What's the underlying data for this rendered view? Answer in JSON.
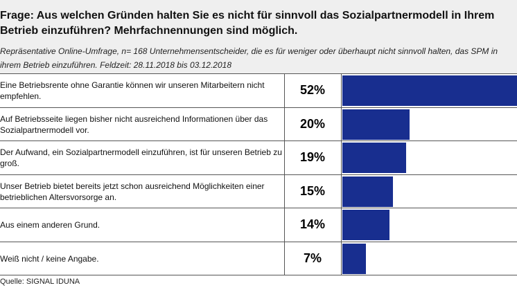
{
  "header": {
    "title": "Frage: Aus welchen Gründen halten Sie es nicht für sinnvoll das Sozialpartnermodell in Ihrem Betrieb einzuführen? Mehrfachnennungen sind möglich.",
    "subtitle": "Repräsentative Online-Umfrage, n= 168 Unternehmensentscheider, die es für weniger oder überhaupt nicht sinnvoll halten, das SPM in ihrem Betrieb einzuführen. Feldzeit: 28.11.2018 bis 03.12.2018"
  },
  "source": "Quelle: SIGNAL IDUNA",
  "colors": {
    "bar": "#182e8f",
    "header_bg": "#efefef"
  },
  "chart_data": {
    "type": "bar",
    "orientation": "horizontal",
    "title": "Frage: Aus welchen Gründen halten Sie es nicht für sinnvoll das Sozialpartnermodell in Ihrem Betrieb einzuführen? Mehrfachnennungen sind möglich.",
    "categories": [
      "Eine Betriebsrente ohne Garantie können wir unseren Mitarbeitern nicht empfehlen.",
      "Auf Betriebsseite liegen bisher nicht ausreichend Informationen über das Sozialpartnermodell vor.",
      "Der Aufwand, ein Sozialpartnermodell einzuführen, ist für unseren Betrieb zu groß.",
      "Unser Betrieb bietet bereits jetzt schon ausreichend Möglichkeiten einer betrieblichen Altersvorsorge an.",
      "Aus einem anderen Grund.",
      "Weiß nicht / keine Angabe."
    ],
    "values": [
      52,
      20,
      19,
      15,
      14,
      7
    ],
    "value_labels": [
      "52%",
      "20%",
      "19%",
      "15%",
      "14%",
      "7%"
    ],
    "xlim": [
      0,
      52
    ],
    "unit": "%"
  }
}
